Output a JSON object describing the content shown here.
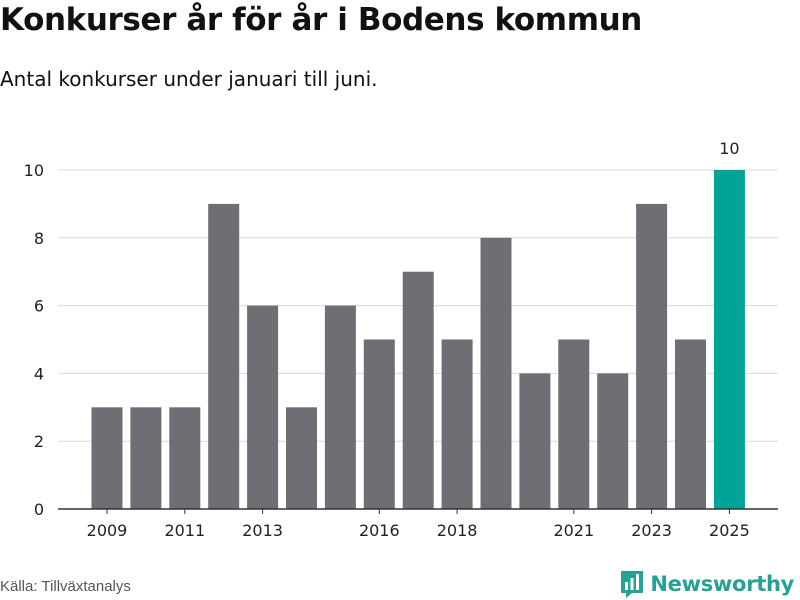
{
  "header": {
    "title": "Konkurser år för år i Bodens kommun",
    "subtitle": "Antal konkurser under januari till juni."
  },
  "footer": {
    "source": "Källa: Tillväxtanalys",
    "brand": "Newsworthy"
  },
  "colors": {
    "bar": "#6f6e74",
    "highlight": "#00a398",
    "grid": "#d9d9d9",
    "axis": "#333333",
    "brand": "#24a294"
  },
  "chart_data": {
    "type": "bar",
    "x": [
      2009,
      2010,
      2011,
      2012,
      2013,
      2014,
      2015,
      2016,
      2017,
      2018,
      2019,
      2020,
      2021,
      2022,
      2023,
      2024,
      2025
    ],
    "values": [
      3,
      3,
      3,
      9,
      6,
      3,
      6,
      5,
      7,
      5,
      8,
      4,
      5,
      4,
      9,
      5,
      10
    ],
    "highlight_index": 16,
    "data_labels": [
      {
        "index": 16,
        "text": "10"
      }
    ],
    "xticks": [
      "2009",
      "2011",
      "2013",
      "2016",
      "2018",
      "2021",
      "2023",
      "2025"
    ],
    "yticks": [
      "0",
      "2",
      "4",
      "6",
      "8",
      "10"
    ],
    "ylim": [
      0,
      10
    ],
    "grid": "horizontal",
    "xlabel": "",
    "ylabel": "",
    "legend": "none"
  }
}
